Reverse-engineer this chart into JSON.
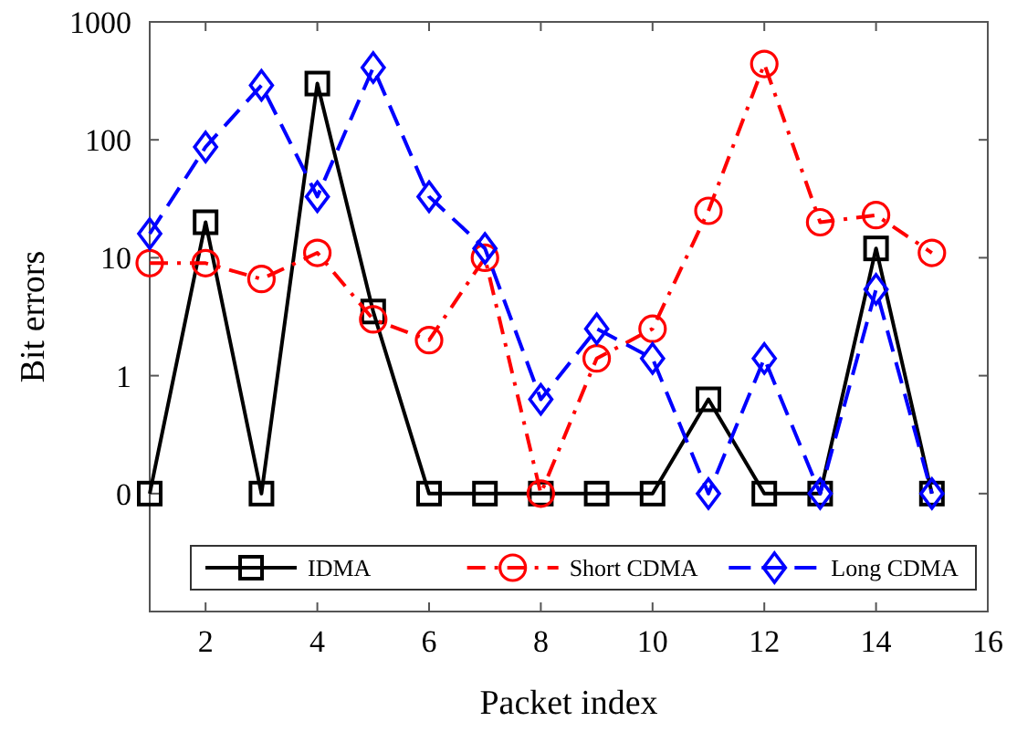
{
  "chart_data": {
    "type": "line",
    "xlabel": "Packet index",
    "ylabel": "Bit errors",
    "x": [
      1,
      2,
      3,
      4,
      5,
      6,
      7,
      8,
      9,
      10,
      11,
      12,
      13,
      14,
      15
    ],
    "xlim": [
      1,
      16
    ],
    "xticks": [
      2,
      4,
      6,
      8,
      10,
      12,
      14,
      16
    ],
    "log": true,
    "ylim": [
      0.01,
      1000
    ],
    "yticks": [
      {
        "value": 0.1,
        "label": "0"
      },
      1,
      10,
      100,
      1000
    ],
    "grid": false,
    "legend": "bottom",
    "series": [
      {
        "name": "IDMA",
        "color": "#000000",
        "marker": "square",
        "line_style": "solid",
        "values": [
          0.1,
          20,
          0.1,
          300,
          3.5,
          0.1,
          0.1,
          0.1,
          0.1,
          0.1,
          0.63,
          0.1,
          0.1,
          12,
          0.1
        ]
      },
      {
        "name": "Short CDMA",
        "color": "#ff0000",
        "marker": "circle",
        "line_style": "dashdot",
        "values": [
          9,
          9,
          6.6,
          11,
          3,
          2,
          10,
          0.1,
          1.4,
          2.5,
          25,
          440,
          20,
          23,
          11
        ]
      },
      {
        "name": "Long CDMA",
        "color": "#0000ff",
        "marker": "diamond",
        "line_style": "dashed",
        "values": [
          16,
          87,
          290,
          33,
          410,
          33,
          12,
          0.63,
          2.5,
          1.4,
          0.1,
          1.4,
          0.1,
          5.4,
          0.1
        ]
      }
    ]
  }
}
